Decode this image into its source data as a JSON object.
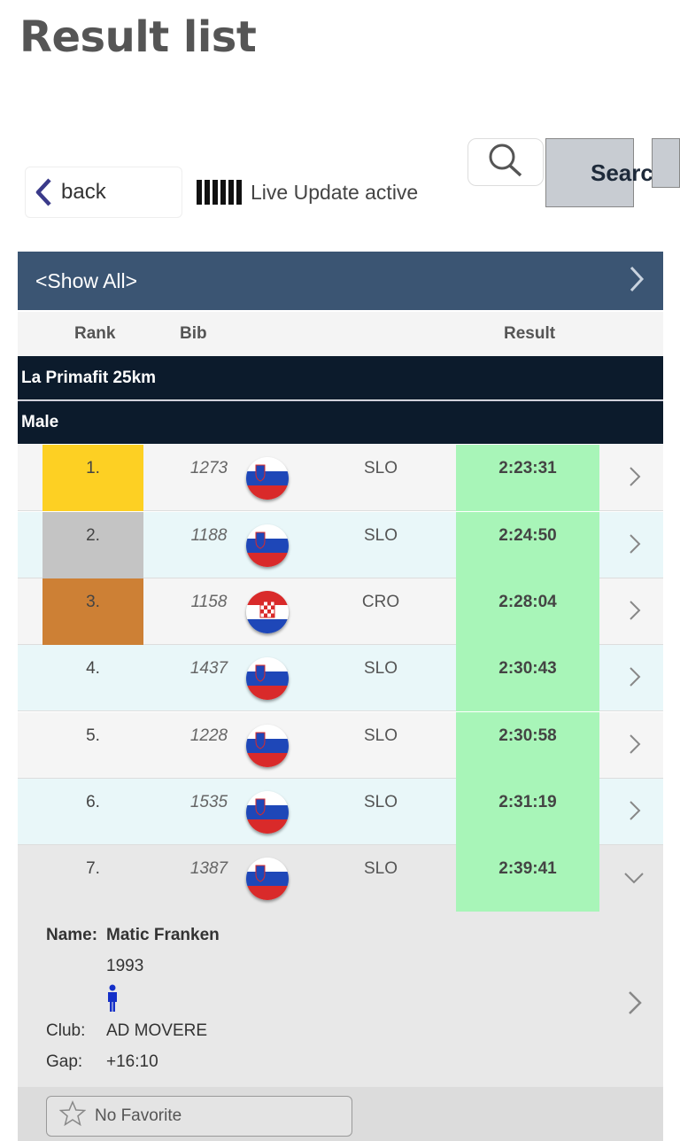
{
  "page": {
    "title": "Result list"
  },
  "toolbar": {
    "back_label": "back",
    "live_text": "Live Update active",
    "search_label": "Search"
  },
  "filter": {
    "label": "<Show All>"
  },
  "columns": {
    "rank": "Rank",
    "bib": "Bib",
    "result": "Result"
  },
  "groups": {
    "race": "La Primafit 25km",
    "gender": "Male"
  },
  "colors": {
    "gold": "#fdd023",
    "silver": "#c4c4c4",
    "bronze": "#cd8035",
    "result_bg": "#a8f5b8",
    "header_bg": "#3b5573",
    "group_bg": "#0c1b2c",
    "row_light": "#f5f5f5",
    "row_alt": "#e9f7f9"
  },
  "rows": [
    {
      "rank": "1.",
      "bib": "1273",
      "nat": "SLO",
      "flag": "slovenia-flag-icon",
      "result": "2:23:31"
    },
    {
      "rank": "2.",
      "bib": "1188",
      "nat": "SLO",
      "flag": "slovenia-flag-icon",
      "result": "2:24:50"
    },
    {
      "rank": "3.",
      "bib": "1158",
      "nat": "CRO",
      "flag": "croatia-flag-icon",
      "result": "2:28:04"
    },
    {
      "rank": "4.",
      "bib": "1437",
      "nat": "SLO",
      "flag": "slovenia-flag-icon",
      "result": "2:30:43"
    },
    {
      "rank": "5.",
      "bib": "1228",
      "nat": "SLO",
      "flag": "slovenia-flag-icon",
      "result": "2:30:58"
    },
    {
      "rank": "6.",
      "bib": "1535",
      "nat": "SLO",
      "flag": "slovenia-flag-icon",
      "result": "2:31:19"
    },
    {
      "rank": "7.",
      "bib": "1387",
      "nat": "SLO",
      "flag": "slovenia-flag-icon",
      "result": "2:39:41"
    }
  ],
  "detail": {
    "name_label": "Name:",
    "name": "Matic Franken",
    "year": "1993",
    "gender_icon": "male-icon",
    "club_label": "Club:",
    "club": "AD MOVERE",
    "gap_label": "Gap:",
    "gap": "+16:10"
  },
  "favorite": {
    "label": "No Favorite"
  }
}
